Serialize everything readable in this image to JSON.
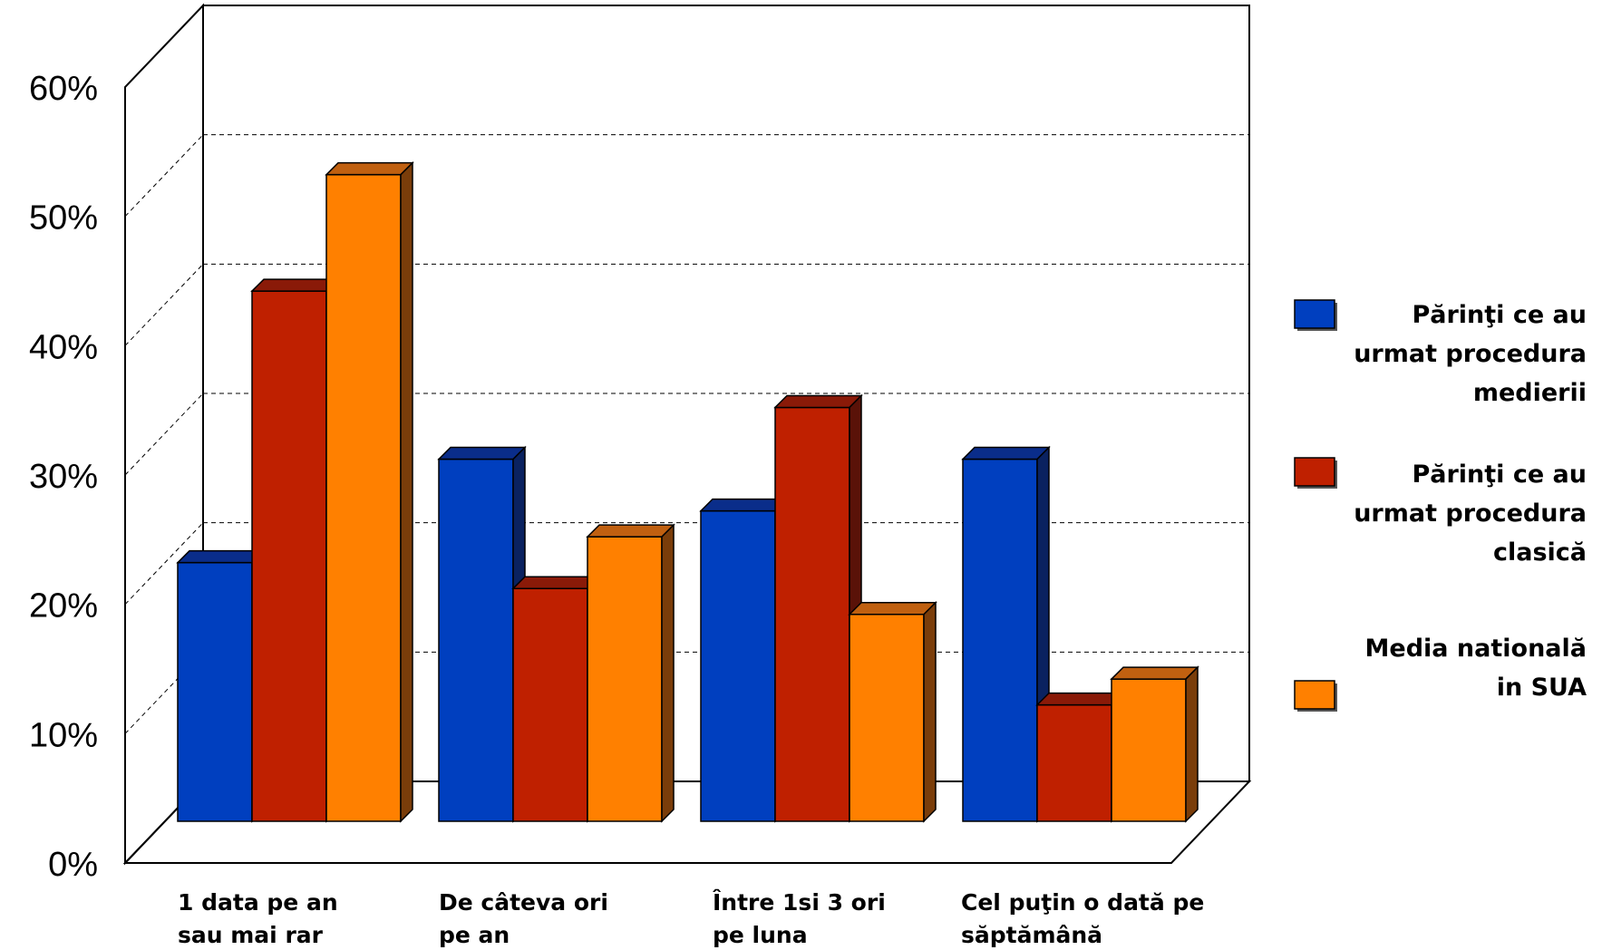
{
  "chart_data": {
    "type": "bar",
    "ylim": [
      0,
      60
    ],
    "yticks": [
      "0%",
      "10%",
      "20%",
      "30%",
      "40%",
      "50%",
      "60%"
    ],
    "grid": true,
    "legend_position": "right",
    "categories": [
      [
        "1 data pe an",
        "sau mai rar"
      ],
      [
        "De câteva ori",
        "pe an"
      ],
      [
        "Între 1si 3 ori",
        "pe luna"
      ],
      [
        "Cel puţin o dată pe",
        "săptămână"
      ]
    ],
    "series": [
      {
        "name": [
          "Părinţi ce au",
          "urmat procedura",
          "medierii"
        ],
        "values": [
          20,
          28,
          24,
          28
        ],
        "color": "#003fbf",
        "top": "#0a2d8a",
        "side": "#0a2260"
      },
      {
        "name": [
          "Părinţi ce au",
          "urmat procedura",
          "clasică"
        ],
        "values": [
          41,
          18,
          32,
          9
        ],
        "color": "#bf2000",
        "top": "#8a1a08",
        "side": "#5a1208"
      },
      {
        "name": [
          "Media natională",
          "in SUA"
        ],
        "values": [
          50,
          22,
          16,
          11
        ],
        "color": "#ff8000",
        "top": "#c06010",
        "side": "#7a3d0a"
      }
    ]
  }
}
